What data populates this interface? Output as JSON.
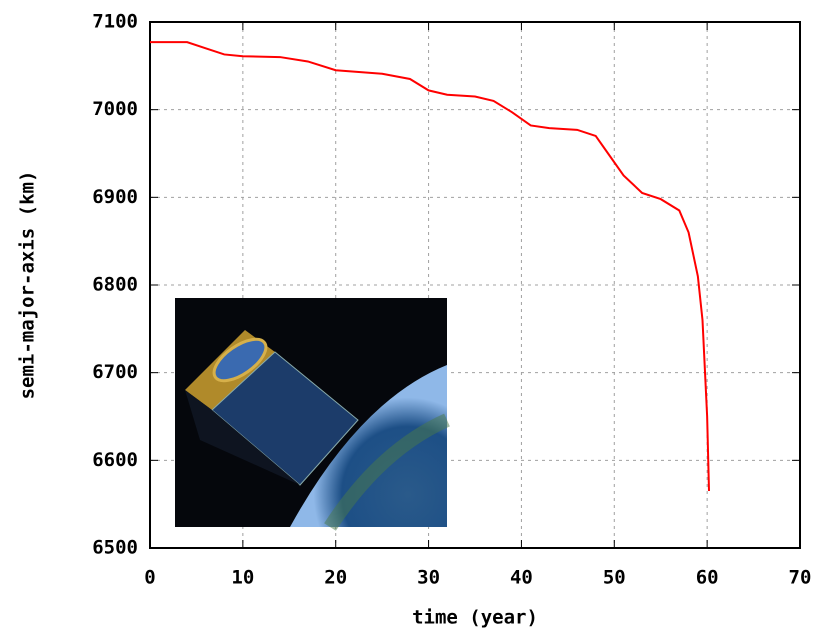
{
  "chart_data": {
    "type": "line",
    "x_label": "time (year)",
    "y_label": "semi-major-axis (km)",
    "x": [
      0,
      4,
      6,
      8,
      10,
      14,
      17,
      20,
      25,
      28,
      30,
      32,
      35,
      37,
      39,
      41,
      43,
      46,
      48,
      49,
      51,
      53,
      55,
      57,
      58,
      59,
      59.5,
      60,
      60.2
    ],
    "values": [
      7077,
      7077,
      7070,
      7063,
      7061,
      7060,
      7055,
      7045,
      7041,
      7035,
      7022,
      7017,
      7015,
      7010,
      6997,
      6982,
      6979,
      6977,
      6970,
      6955,
      6925,
      6905,
      6898,
      6885,
      6860,
      6810,
      6760,
      6650,
      6565
    ],
    "color": "#ff0000",
    "xlim": [
      0,
      70
    ],
    "xticks": [
      0,
      10,
      20,
      30,
      40,
      50,
      60,
      70
    ],
    "ylim": [
      6500,
      7100
    ],
    "yticks": [
      6500,
      6600,
      6700,
      6800,
      6900,
      7000,
      7100
    ],
    "grid": true
  }
}
